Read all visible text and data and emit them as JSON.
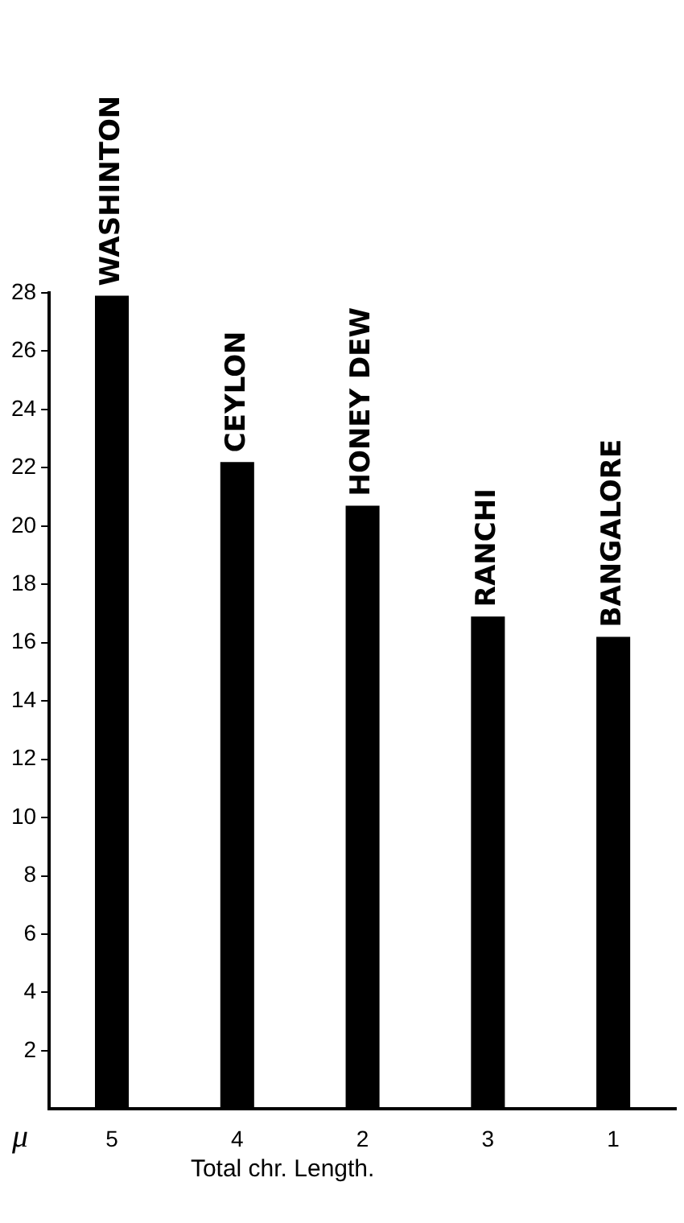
{
  "chart_data": {
    "type": "bar",
    "xlabel": "Total chr. Length.",
    "ylabel": "μ",
    "categories": [
      "5",
      "4",
      "2",
      "3",
      "1"
    ],
    "values": [
      27.9,
      22.2,
      20.7,
      16.9,
      16.2
    ],
    "color": "#000000",
    "ylim": [
      0,
      28
    ],
    "yticks": [
      2,
      4,
      6,
      8,
      10,
      12,
      14,
      16,
      18,
      20,
      22,
      24,
      26,
      28
    ],
    "grid": false,
    "legend": false,
    "annotations": [
      {
        "text": "WASHINTON",
        "x": "5",
        "y": 27.9
      },
      {
        "text": "CEYLON",
        "x": "4",
        "y": 22.2
      },
      {
        "text": "HONEY DEW",
        "x": "2",
        "y": 20.7
      },
      {
        "text": "RANCHI",
        "x": "3",
        "y": 16.9
      },
      {
        "text": "BANGALORE",
        "x": "1",
        "y": 16.2
      }
    ]
  }
}
